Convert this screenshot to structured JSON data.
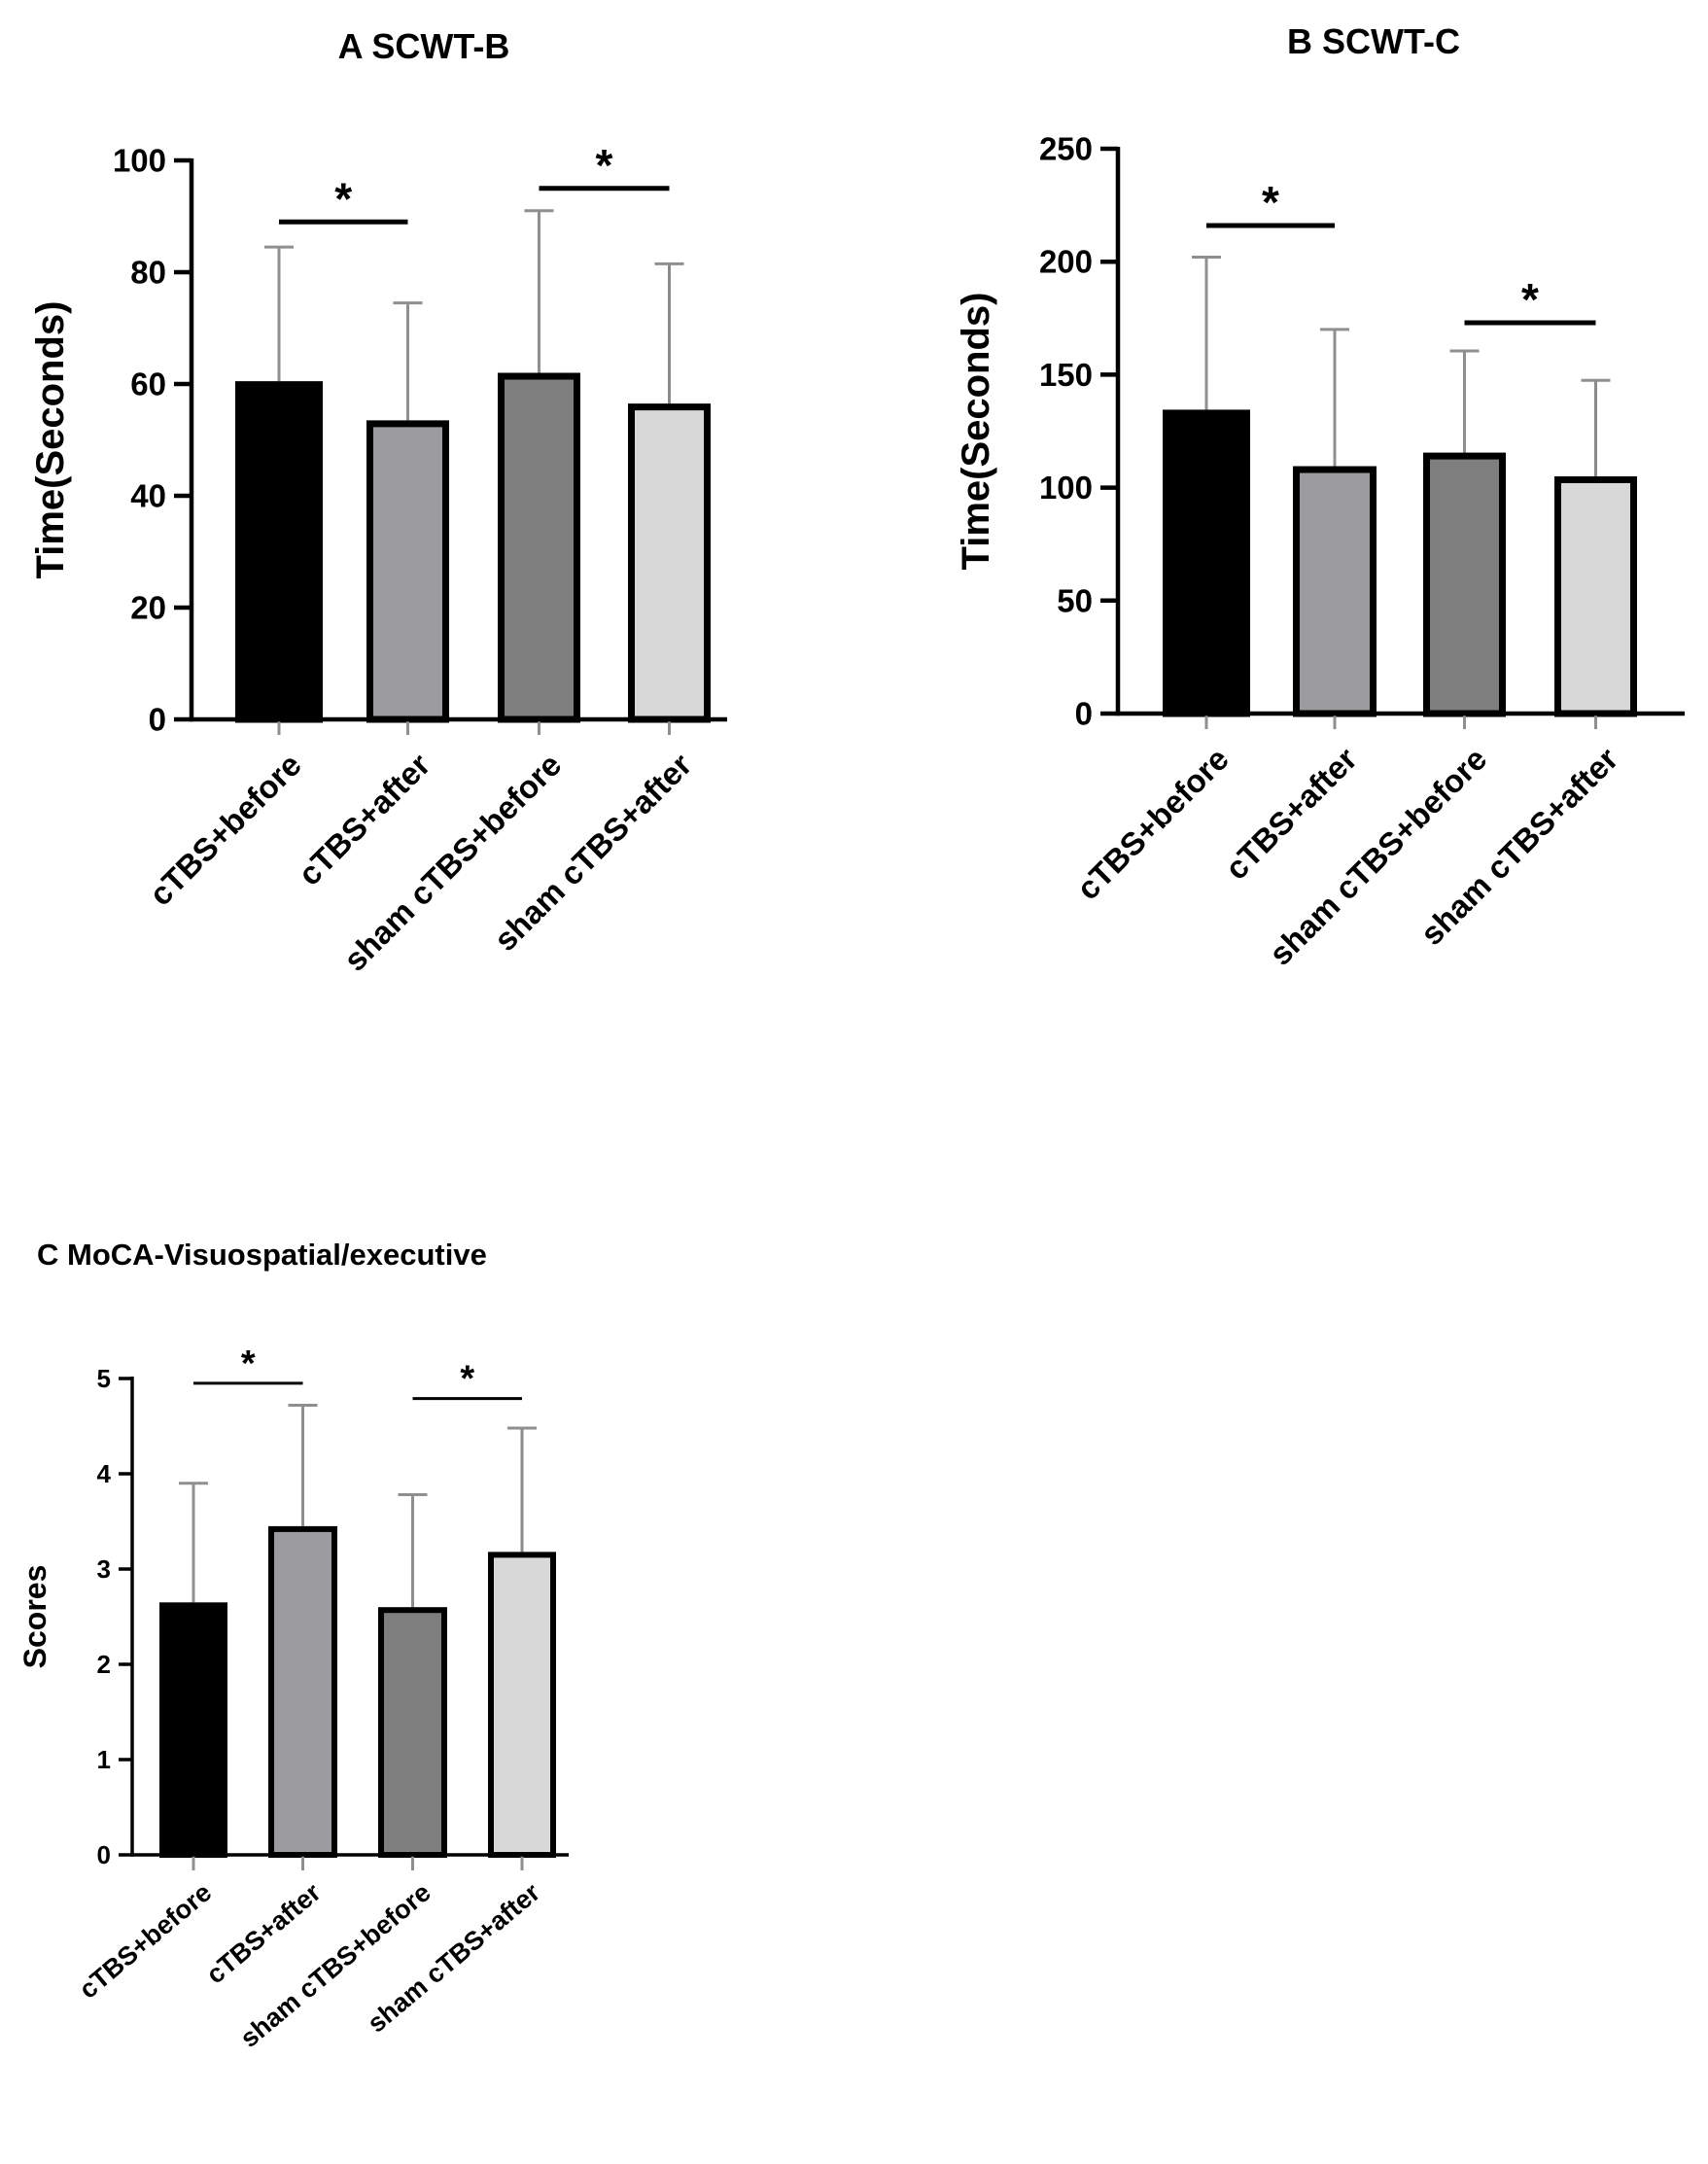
{
  "chart_data": [
    {
      "type": "bar",
      "title": "A  SCWT-B",
      "xlabel": "",
      "ylabel": "Time(Seconds)",
      "ylim": [
        0,
        100
      ],
      "yticks": [
        0,
        20,
        40,
        60,
        80,
        100
      ],
      "categories": [
        "cTBS+before",
        "cTBS+after",
        "sham cTBS+before",
        "sham cTBS+after"
      ],
      "values": [
        60.5,
        53.5,
        62,
        56.5
      ],
      "errors": [
        24,
        21,
        29,
        25
      ],
      "colors": [
        "#000000",
        "#9c9ca0",
        "#7e7e7e",
        "#d8d8d8"
      ],
      "significance": [
        {
          "pair": [
            0,
            1
          ],
          "label": "*",
          "y": 89
        },
        {
          "pair": [
            2,
            3
          ],
          "label": "*",
          "y": 95
        }
      ]
    },
    {
      "type": "bar",
      "title": "B  SCWT-C",
      "xlabel": "",
      "ylabel": "Time(Seconds)",
      "ylim": [
        0,
        250
      ],
      "yticks": [
        0,
        50,
        100,
        150,
        200,
        250
      ],
      "categories": [
        "cTBS+before",
        "cTBS+after",
        "sham cTBS+before",
        "sham cTBS+after"
      ],
      "values": [
        134.5,
        109.5,
        115.5,
        105
      ],
      "errors": [
        67.5,
        60.5,
        45,
        42.5
      ],
      "colors": [
        "#000000",
        "#9c9ca0",
        "#7e7e7e",
        "#d8d8d8"
      ],
      "significance": [
        {
          "pair": [
            0,
            1
          ],
          "label": "*",
          "y": 216
        },
        {
          "pair": [
            2,
            3
          ],
          "label": "*",
          "y": 173
        }
      ]
    },
    {
      "type": "bar",
      "title": "C  MoCA-Visuospatial/executive",
      "xlabel": "",
      "ylabel": "Scores",
      "ylim": [
        0,
        5
      ],
      "yticks": [
        0,
        1,
        2,
        3,
        4,
        5
      ],
      "categories": [
        "cTBS+before",
        "cTBS+after",
        "sham cTBS+before",
        "sham cTBS+after"
      ],
      "values": [
        2.65,
        3.45,
        2.6,
        3.18
      ],
      "errors": [
        1.25,
        1.27,
        1.18,
        1.3
      ],
      "colors": [
        "#000000",
        "#9c9ca0",
        "#7e7e7e",
        "#d8d8d8"
      ],
      "significance": [
        {
          "pair": [
            0,
            1
          ],
          "label": "*",
          "y": 4.95
        },
        {
          "pair": [
            2,
            3
          ],
          "label": "*",
          "y": 4.79
        }
      ]
    }
  ]
}
